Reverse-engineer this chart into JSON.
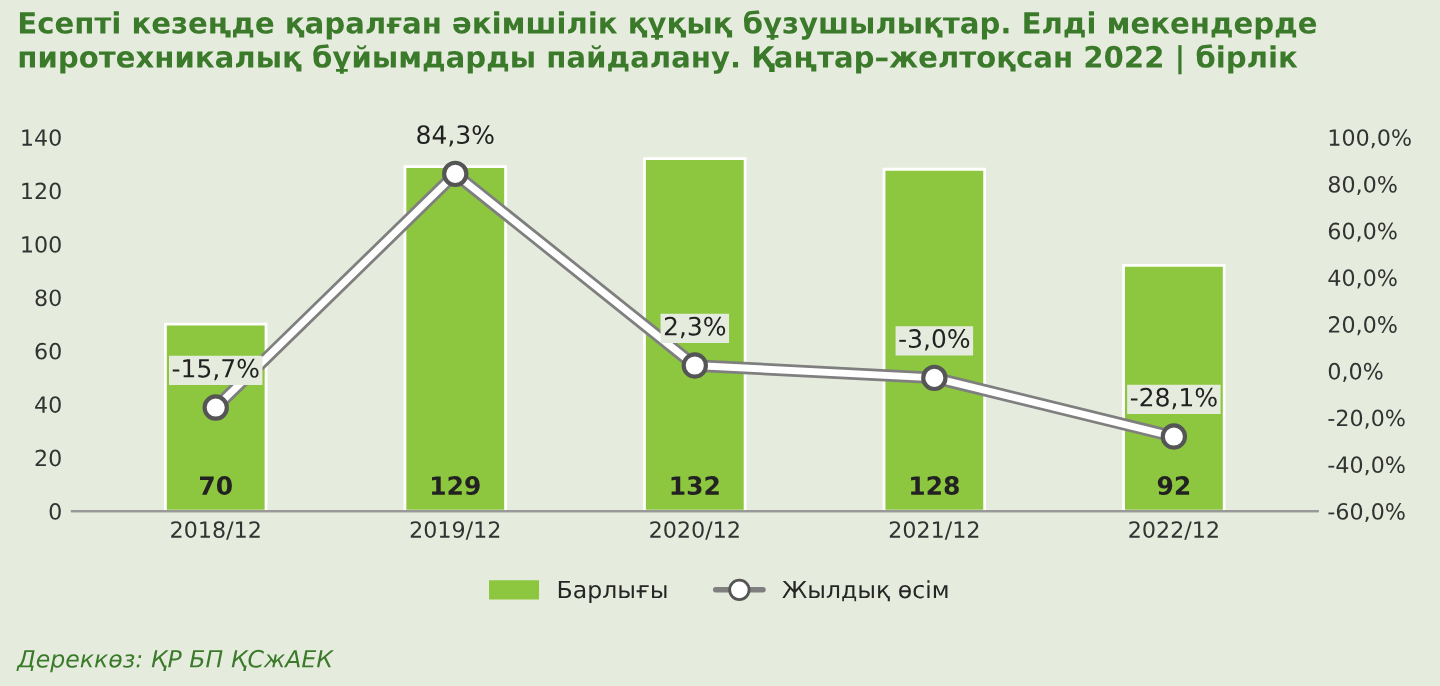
{
  "chart_data": {
    "type": "bar",
    "title": "Есепті кезеңде қаралған әкімшілік құқық бұзушылықтар. Елді мекендерде пиротехникалық бұйымдарды пайдалану. Қаңтар–желтоқсан 2022 | бірлік",
    "categories": [
      "2018/12",
      "2019/12",
      "2020/12",
      "2021/12",
      "2022/12"
    ],
    "series": [
      {
        "name": "Барлығы",
        "color": "#8dc63f",
        "values": [
          70,
          129,
          132,
          128,
          92
        ]
      },
      {
        "name": "Жылдық өсім",
        "type": "line",
        "axis": "y2",
        "color": "#ffffff",
        "values": [
          -15.7,
          84.3,
          2.3,
          -3.0,
          -28.1
        ],
        "value_labels": [
          "-15,7%",
          "84,3%",
          "2,3%",
          "-3,0%",
          "-28,1%"
        ],
        "marker": "circle"
      }
    ],
    "data_labels": true,
    "ylim": [
      0,
      140
    ],
    "yticks": [
      0,
      20,
      40,
      60,
      80,
      100,
      120,
      140
    ],
    "y2lim": [
      -60,
      100
    ],
    "y2ticks": [
      {
        "value": -60,
        "label": "-60,0%"
      },
      {
        "value": -40,
        "label": "-40,0%"
      },
      {
        "value": -20,
        "label": "-20,0%"
      },
      {
        "value": 0,
        "label": "0,0%"
      },
      {
        "value": 20,
        "label": "20,0%"
      },
      {
        "value": 40,
        "label": "40,0%"
      },
      {
        "value": 60,
        "label": "60,0%"
      },
      {
        "value": 80,
        "label": "80,0%"
      },
      {
        "value": 100,
        "label": "100,0%"
      }
    ],
    "grid": false,
    "legend": "bottom",
    "annotations": [
      "Дереккөз: ҚР БП ҚСжАЕК"
    ]
  }
}
